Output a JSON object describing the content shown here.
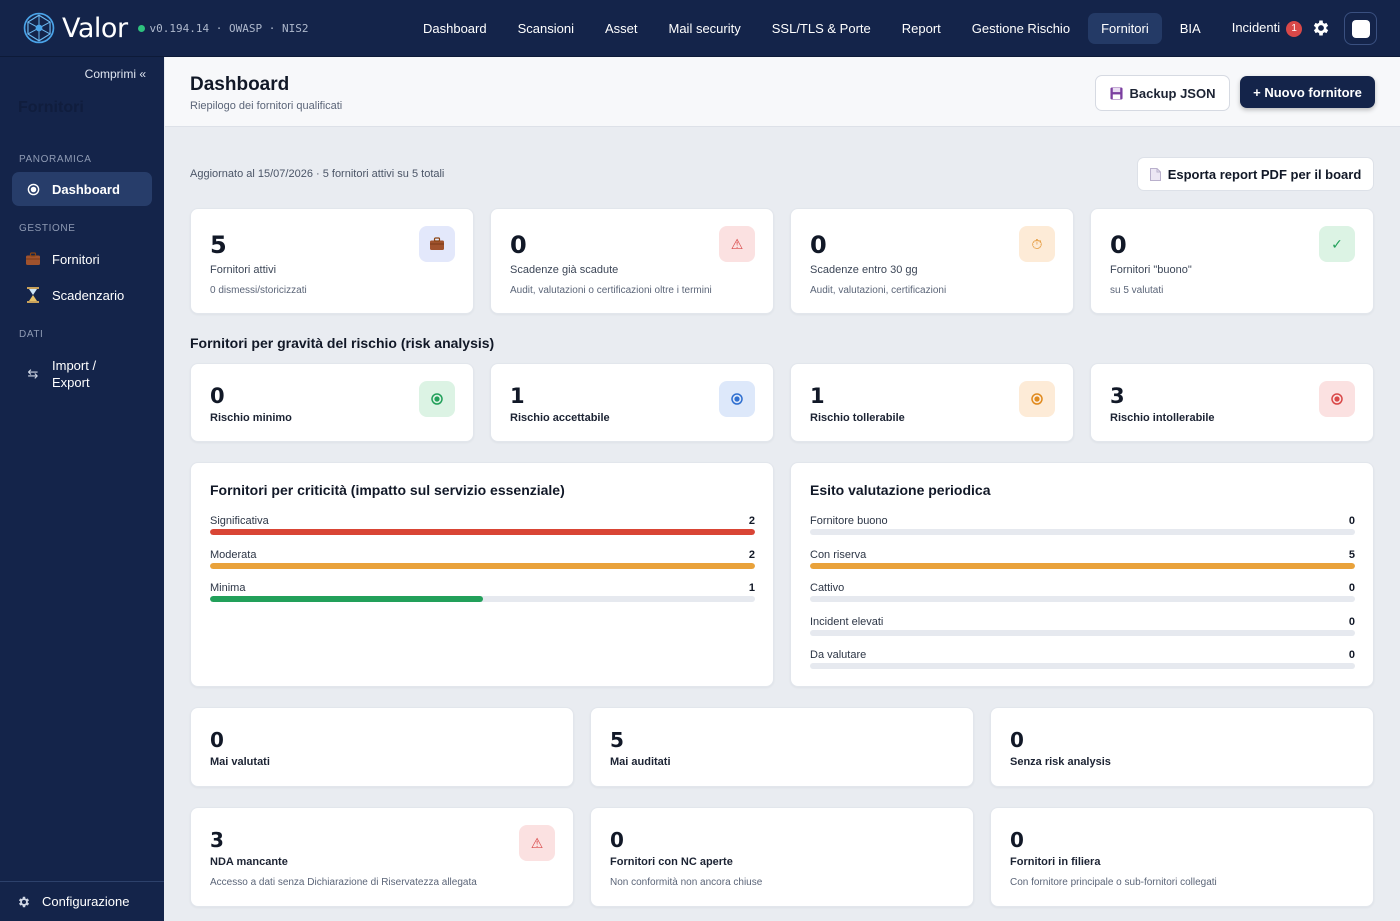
{
  "app": {
    "name": "Valor",
    "version": "v0.194.14 · OWASP · NIS2"
  },
  "nav": {
    "items": [
      "Dashboard",
      "Scansioni",
      "Asset",
      "Mail security",
      "SSL/TLS & Porte",
      "Report",
      "Gestione Rischio",
      "Fornitori",
      "BIA"
    ],
    "active": "Fornitori",
    "incidents_label": "Incidenti",
    "incidents_count": "1"
  },
  "sidebar": {
    "collapse_label": "Comprimi «",
    "ghost_title": "Fornitori",
    "sections": {
      "overview": "PANORAMICA",
      "manage": "GESTIONE",
      "data": "DATI"
    },
    "items": {
      "dashboard": "Dashboard",
      "suppliers": "Fornitori",
      "deadlines": "Scadenzario",
      "import_export": "Import / Export"
    },
    "footer": "Configurazione"
  },
  "header": {
    "title": "Dashboard",
    "subtitle": "Riepilogo dei fornitori qualificati",
    "backup_label": "Backup JSON",
    "new_label": "+ Nuovo fornitore"
  },
  "updated_text": "Aggiornato al 15/07/2026 · 5 fornitori attivi su 5 totali",
  "pdf_label": "Esporta report PDF per il board",
  "kpis": [
    {
      "value": "5",
      "label": "Fornitori attivi",
      "sub": "0 dismessi/storicizzati",
      "icon": "briefcase-icon"
    },
    {
      "value": "0",
      "label": "Scadenze già scadute",
      "sub": "Audit, valutazioni o certificazioni oltre i termini",
      "icon": "warning-icon"
    },
    {
      "value": "0",
      "label": "Scadenze entro 30 gg",
      "sub": "Audit, valutazioni, certificazioni",
      "icon": "timer-icon"
    },
    {
      "value": "0",
      "label": "Fornitori \"buono\"",
      "sub": "su 5 valutati",
      "icon": "check-icon"
    }
  ],
  "risk_section_title": "Fornitori per gravità del rischio (risk analysis)",
  "risk": [
    {
      "value": "0",
      "label": "Rischio minimo",
      "color": "#22a05a"
    },
    {
      "value": "1",
      "label": "Rischio accettabile",
      "color": "#2f6fd0"
    },
    {
      "value": "1",
      "label": "Rischio tollerabile",
      "color": "#e08a1e"
    },
    {
      "value": "3",
      "label": "Rischio intollerabile",
      "color": "#d94848"
    }
  ],
  "criticality": {
    "title": "Fornitori per criticità (impatto sul servizio essenziale)",
    "max": 2,
    "rows": [
      {
        "label": "Significativa",
        "value": 2,
        "color": "#d94535"
      },
      {
        "label": "Moderata",
        "value": 2,
        "color": "#e9a23b"
      },
      {
        "label": "Minima",
        "value": 1,
        "color": "#22a05a"
      }
    ]
  },
  "evaluation": {
    "title": "Esito valutazione periodica",
    "max": 5,
    "rows": [
      {
        "label": "Fornitore buono",
        "value": 0,
        "color": "#22a05a"
      },
      {
        "label": "Con riserva",
        "value": 5,
        "color": "#e9a23b"
      },
      {
        "label": "Cattivo",
        "value": 0,
        "color": "#d94535"
      },
      {
        "label": "Incident elevati",
        "value": 0,
        "color": "#d94535"
      },
      {
        "label": "Da valutare",
        "value": 0,
        "color": "#8f9bb4"
      }
    ]
  },
  "stats": [
    {
      "value": "0",
      "label": "Mai valutati"
    },
    {
      "value": "5",
      "label": "Mai auditati"
    },
    {
      "value": "0",
      "label": "Senza risk analysis"
    }
  ],
  "stats2": [
    {
      "value": "3",
      "label": "NDA mancante",
      "sub": "Accesso a dati senza Dichiarazione di Riservatezza allegata",
      "icon": "warning-icon"
    },
    {
      "value": "0",
      "label": "Fornitori con NC aperte",
      "sub": "Non conformità non ancora chiuse"
    },
    {
      "value": "0",
      "label": "Fornitori in filiera",
      "sub": "Con fornitore principale o sub-fornitori collegati"
    }
  ],
  "colors": {
    "navy": "#14244a",
    "accent": "#243a66"
  }
}
